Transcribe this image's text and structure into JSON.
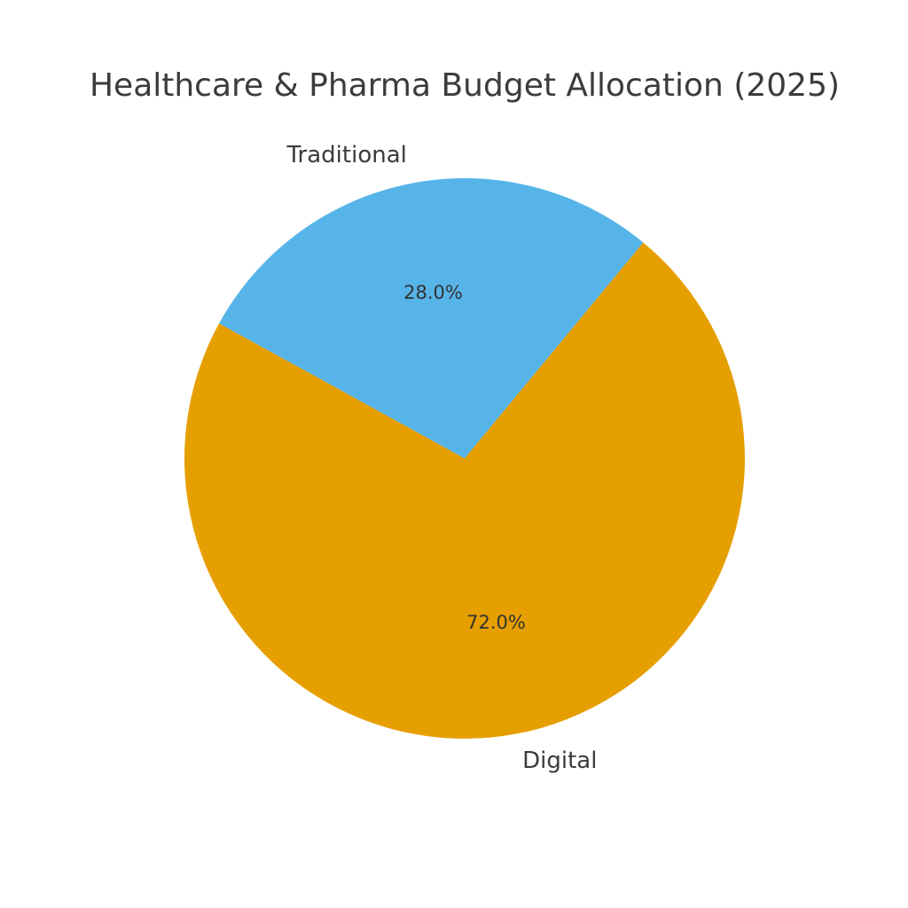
{
  "chart_data": {
    "type": "pie",
    "title": "Healthcare & Pharma Budget Allocation (2025)",
    "slices": [
      {
        "label": "Traditional",
        "value": 28.0,
        "pct_label": "28.0%",
        "color": "#56B4E9"
      },
      {
        "label": "Digital",
        "value": 72.0,
        "pct_label": "72.0%",
        "color": "#E69F00"
      }
    ],
    "start_angle_deg": 50.4,
    "direction": "counterclockwise",
    "legend": "none"
  }
}
